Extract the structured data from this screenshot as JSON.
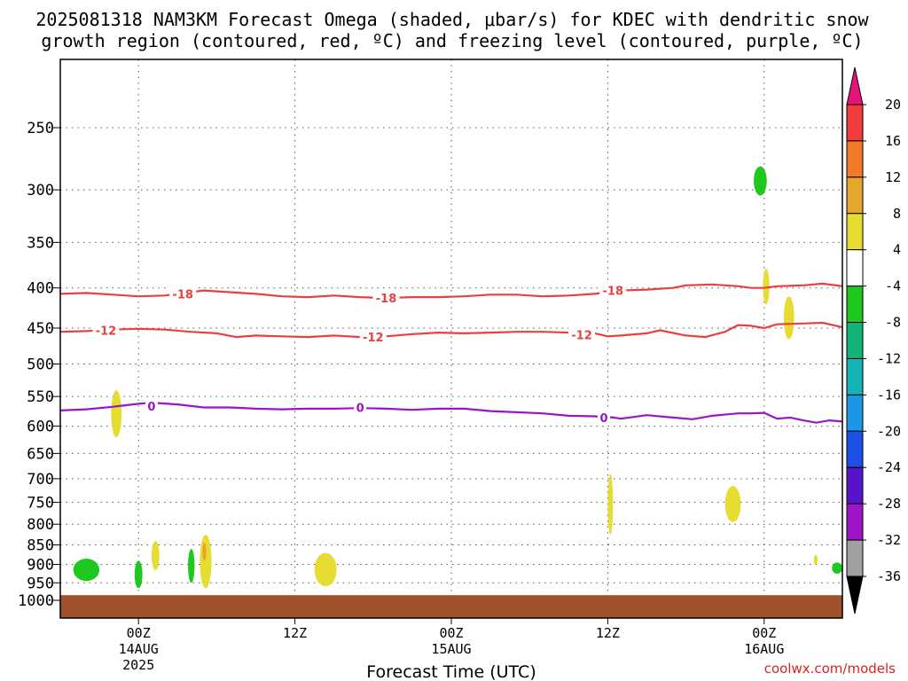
{
  "title": {
    "line1": "2025081318 NAM3KM Forecast Omega (shaded, μbar/s) for KDEC with dendritic snow",
    "line2": "growth region (contoured, red, ºC) and freezing level (contoured, purple, ºC)"
  },
  "credit": "coolwx.com/models",
  "chart_data": {
    "type": "time-height cross-section",
    "xlabel": "Forecast Time (UTC)",
    "x_range_hours": [
      0,
      60
    ],
    "x_ticks": [
      {
        "hour": 6,
        "lines": [
          "00Z",
          "14AUG",
          "2025"
        ]
      },
      {
        "hour": 18,
        "lines": [
          "12Z"
        ]
      },
      {
        "hour": 30,
        "lines": [
          "00Z",
          "15AUG"
        ]
      },
      {
        "hour": 42,
        "lines": [
          "12Z"
        ]
      },
      {
        "hour": 54,
        "lines": [
          "00Z",
          "16AUG"
        ]
      }
    ],
    "y_axis": {
      "scale": "log-pressure",
      "units": "mb",
      "range": [
        1030,
        200
      ],
      "ticks": [
        "250",
        "300",
        "350",
        "400",
        "450",
        "500",
        "550",
        "600",
        "650",
        "700",
        "750",
        "800",
        "850",
        "900",
        "950",
        "1000"
      ]
    },
    "grid": true,
    "colorbar": {
      "labels": [
        "20",
        "16",
        "12",
        "8",
        "4",
        "-4",
        "-8",
        "-12",
        "-16",
        "-20",
        "-24",
        "-28",
        "-32",
        "-36"
      ],
      "bins": [
        {
          "lo": 16,
          "hi": 20,
          "color": "#f03c3c"
        },
        {
          "lo": 12,
          "hi": 16,
          "color": "#f07a28"
        },
        {
          "lo": 8,
          "hi": 12,
          "color": "#e6a62e"
        },
        {
          "lo": 4,
          "hi": 8,
          "color": "#e6dc32"
        },
        {
          "lo": -4,
          "hi": 4,
          "color": "#ffffff"
        },
        {
          "lo": -8,
          "hi": -4,
          "color": "#1ec81e"
        },
        {
          "lo": -12,
          "hi": -8,
          "color": "#14b478"
        },
        {
          "lo": -16,
          "hi": -12,
          "color": "#14b4b4"
        },
        {
          "lo": -20,
          "hi": -16,
          "color": "#1e96e6"
        },
        {
          "lo": -24,
          "hi": -20,
          "color": "#1e50e6"
        },
        {
          "lo": -28,
          "hi": -24,
          "color": "#5a14c8"
        },
        {
          "lo": -32,
          "hi": -28,
          "color": "#a014c8"
        },
        {
          "lo": -36,
          "hi": -32,
          "color": "#a0a0a0"
        }
      ],
      "top_arrow_color": "#e6147a",
      "bottom_arrow_color": "#000000"
    },
    "contours": [
      {
        "value": "-18",
        "color": "#e84040",
        "points": [
          [
            0,
            407
          ],
          [
            2,
            406
          ],
          [
            4,
            408
          ],
          [
            6,
            410
          ],
          [
            8,
            409
          ],
          [
            9.5,
            406
          ],
          [
            11,
            403
          ],
          [
            13,
            405
          ],
          [
            15,
            407
          ],
          [
            17,
            410
          ],
          [
            19,
            411
          ],
          [
            21,
            409
          ],
          [
            23,
            411
          ],
          [
            25,
            412
          ],
          [
            27,
            411
          ],
          [
            29,
            411
          ],
          [
            31,
            410
          ],
          [
            33,
            408
          ],
          [
            35,
            408
          ],
          [
            37,
            410
          ],
          [
            39,
            409
          ],
          [
            41,
            407
          ],
          [
            43,
            403
          ],
          [
            45,
            402
          ],
          [
            47,
            400
          ],
          [
            48,
            397
          ],
          [
            50,
            396
          ],
          [
            52,
            398
          ],
          [
            53,
            400
          ],
          [
            54,
            400
          ],
          [
            55,
            398
          ],
          [
            57,
            397
          ],
          [
            58.5,
            395
          ],
          [
            60,
            398
          ]
        ],
        "labels": [
          [
            9.4,
            407
          ],
          [
            25,
            412
          ],
          [
            42.4,
            403
          ]
        ]
      },
      {
        "value": "-12",
        "color": "#e84040",
        "points": [
          [
            0,
            455
          ],
          [
            2,
            454
          ],
          [
            4,
            452
          ],
          [
            6,
            451
          ],
          [
            8,
            452
          ],
          [
            10,
            455
          ],
          [
            12,
            457
          ],
          [
            13.5,
            462
          ],
          [
            15,
            460
          ],
          [
            17,
            461
          ],
          [
            19,
            462
          ],
          [
            21,
            460
          ],
          [
            23,
            462
          ],
          [
            25,
            461
          ],
          [
            27,
            458
          ],
          [
            29,
            456
          ],
          [
            31,
            457
          ],
          [
            33,
            456
          ],
          [
            35,
            455
          ],
          [
            37,
            455
          ],
          [
            39,
            456
          ],
          [
            41,
            457
          ],
          [
            42,
            461
          ],
          [
            43,
            460
          ],
          [
            45,
            457
          ],
          [
            46,
            453
          ],
          [
            48,
            460
          ],
          [
            49.5,
            462
          ],
          [
            51,
            455
          ],
          [
            52,
            446
          ],
          [
            53,
            447
          ],
          [
            54,
            450
          ],
          [
            55,
            445
          ],
          [
            57,
            444
          ],
          [
            58.5,
            443
          ],
          [
            60,
            449
          ]
        ],
        "labels": [
          [
            3.5,
            453
          ],
          [
            24,
            462
          ],
          [
            40,
            459
          ]
        ]
      },
      {
        "value": "0",
        "color": "#9a14c8",
        "points": [
          [
            0,
            573
          ],
          [
            2,
            571
          ],
          [
            4,
            567
          ],
          [
            6,
            562
          ],
          [
            7,
            560
          ],
          [
            9,
            563
          ],
          [
            11,
            568
          ],
          [
            13,
            568
          ],
          [
            15,
            570
          ],
          [
            17,
            571
          ],
          [
            19,
            570
          ],
          [
            21,
            570
          ],
          [
            23,
            569
          ],
          [
            25,
            570
          ],
          [
            27,
            572
          ],
          [
            29,
            570
          ],
          [
            31,
            570
          ],
          [
            33,
            574
          ],
          [
            35,
            576
          ],
          [
            37,
            578
          ],
          [
            39,
            582
          ],
          [
            41,
            583
          ],
          [
            42.5,
            585
          ],
          [
            43,
            587
          ],
          [
            45,
            581
          ],
          [
            47,
            585
          ],
          [
            48.5,
            588
          ],
          [
            50,
            582
          ],
          [
            52,
            578
          ],
          [
            53,
            578
          ],
          [
            54,
            577
          ],
          [
            55,
            587
          ],
          [
            56,
            585
          ],
          [
            57,
            590
          ],
          [
            58,
            594
          ],
          [
            59,
            590
          ],
          [
            60,
            592
          ]
        ],
        "labels": [
          [
            7,
            566
          ],
          [
            23,
            568
          ],
          [
            41.7,
            585
          ]
        ]
      }
    ],
    "shaded_regions": [
      {
        "color": "#1ec81e",
        "omega_range": [
          -8,
          -4
        ],
        "hour_span": [
          1.0,
          3.0
        ],
        "pressure_span": [
          885,
          945
        ]
      },
      {
        "color": "#1ec81e",
        "omega_range": [
          -8,
          -4
        ],
        "hour_span": [
          5.7,
          6.3
        ],
        "pressure_span": [
          890,
          965
        ]
      },
      {
        "color": "#1ec81e",
        "omega_range": [
          -8,
          -4
        ],
        "hour_span": [
          9.8,
          10.3
        ],
        "pressure_span": [
          860,
          950
        ]
      },
      {
        "color": "#1ec81e",
        "omega_range": [
          -8,
          -4
        ],
        "hour_span": [
          53.2,
          54.2
        ],
        "pressure_span": [
          280,
          305
        ]
      },
      {
        "color": "#1ec81e",
        "omega_range": [
          -8,
          -4
        ],
        "hour_span": [
          59.2,
          60.0
        ],
        "pressure_span": [
          895,
          925
        ]
      },
      {
        "color": "#e6dc32",
        "omega_range": [
          4,
          8
        ],
        "hour_span": [
          3.9,
          4.7
        ],
        "pressure_span": [
          540,
          620
        ]
      },
      {
        "color": "#e6dc32",
        "omega_range": [
          4,
          8
        ],
        "hour_span": [
          7.0,
          7.6
        ],
        "pressure_span": [
          840,
          915
        ]
      },
      {
        "color": "#e6dc32",
        "omega_range": [
          4,
          8
        ],
        "hour_span": [
          10.7,
          11.6
        ],
        "pressure_span": [
          825,
          965
        ]
      },
      {
        "color": "#e6dc32",
        "omega_range": [
          4,
          8
        ],
        "hour_span": [
          19.5,
          21.2
        ],
        "pressure_span": [
          870,
          960
        ]
      },
      {
        "color": "#e6dc32",
        "omega_range": [
          4,
          8
        ],
        "hour_span": [
          42.0,
          42.4
        ],
        "pressure_span": [
          690,
          825
        ]
      },
      {
        "color": "#e6dc32",
        "omega_range": [
          4,
          8
        ],
        "hour_span": [
          51.0,
          52.2
        ],
        "pressure_span": [
          715,
          795
        ]
      },
      {
        "color": "#e6dc32",
        "omega_range": [
          4,
          8
        ],
        "hour_span": [
          53.9,
          54.4
        ],
        "pressure_span": [
          378,
          420
        ]
      },
      {
        "color": "#e6dc32",
        "omega_range": [
          4,
          8
        ],
        "hour_span": [
          55.5,
          56.3
        ],
        "pressure_span": [
          410,
          465
        ]
      },
      {
        "color": "#e6dc32",
        "omega_range": [
          4,
          8
        ],
        "hour_span": [
          57.8,
          58.1
        ],
        "pressure_span": [
          875,
          900
        ]
      },
      {
        "color": "#e6a62e",
        "omega_range": [
          8,
          12
        ],
        "hour_span": [
          10.9,
          11.2
        ],
        "pressure_span": [
          845,
          890
        ]
      }
    ],
    "ground": {
      "color": "#a0522d",
      "pressure_top": 985
    }
  }
}
